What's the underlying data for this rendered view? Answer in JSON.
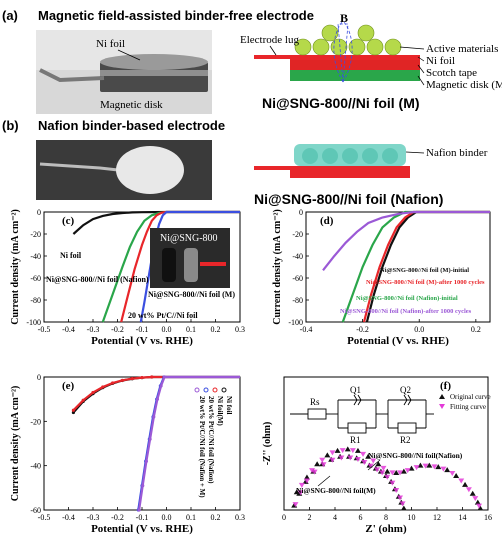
{
  "panels": {
    "a": {
      "letter": "(a)",
      "title": "Magnetic field-assisted binder-free electrode",
      "photo_labels": [
        "Ni foil",
        "Magnetic disk"
      ],
      "schematic_labels": [
        "Electrode lug",
        "B",
        "Active materials",
        "Ni foil",
        "Scotch tape",
        "Magnetic disk (M)"
      ],
      "caption": "Ni@SNG-800//Ni foil (M)"
    },
    "b": {
      "letter": "(b)",
      "title": "Nafion binder-based electrode",
      "schematic_labels": [
        "Nafion binder"
      ],
      "caption": "Ni@SNG-800//Ni foil (Nafion)"
    },
    "c": {
      "letter": "(c)",
      "inset_label": "Ni@SNG-800"
    },
    "d": {
      "letter": "(d)"
    },
    "e": {
      "letter": "(e)"
    },
    "f": {
      "letter": "(f)",
      "circuit_labels": [
        "Rs",
        "Q1",
        "Q2",
        "R1",
        "R2"
      ]
    }
  },
  "colors": {
    "black": "#111111",
    "red": "#e8262a",
    "green": "#2aa64a",
    "blue": "#3b4fe0",
    "violet": "#9b59d6",
    "gray": "#666666",
    "magenta": "#e33ad8",
    "copper": "#c8c8c8",
    "scotch": "#e02525",
    "magnet": "#2aa64a",
    "sphere": "#b5d94a",
    "nafion": "#7fd6c9"
  },
  "chart_data": [
    {
      "id": "c",
      "type": "line",
      "xlabel": "Potential (V vs. RHE)",
      "ylabel": "Current density (mA cm⁻²)",
      "xlim": [
        -0.5,
        0.3
      ],
      "ylim": [
        -100,
        0
      ],
      "xticks": [
        "-0.5",
        "-0.4",
        "-0.3",
        "-0.2",
        "-0.1",
        "0.0",
        "0.1",
        "0.2",
        "0.3"
      ],
      "yticks": [
        "-100",
        "-80",
        "-60",
        "-40",
        "-20",
        "0"
      ],
      "series": [
        {
          "name": "Ni foil",
          "color": "black",
          "x": [
            -0.38,
            -0.34,
            -0.3,
            -0.26,
            -0.22,
            -0.18,
            -0.14,
            -0.1,
            0.0,
            0.3
          ],
          "y": [
            -20,
            -12,
            -6.5,
            -3.5,
            -1.8,
            -0.9,
            -0.4,
            -0.15,
            0,
            0
          ]
        },
        {
          "name": "Ni@SNG-800//Ni foil (Nafion)",
          "color": "green",
          "x": [
            -0.26,
            -0.22,
            -0.18,
            -0.15,
            -0.12,
            -0.09,
            -0.06,
            -0.03,
            0.0,
            0.3
          ],
          "y": [
            -100,
            -75,
            -50,
            -32,
            -18,
            -8,
            -3,
            -0.8,
            0,
            0
          ]
        },
        {
          "name": "Ni@SNG-800//Ni foil (M)",
          "color": "red",
          "x": [
            -0.185,
            -0.16,
            -0.13,
            -0.1,
            -0.08,
            -0.06,
            -0.04,
            -0.02,
            0.0,
            0.3
          ],
          "y": [
            -100,
            -78,
            -52,
            -30,
            -18,
            -8,
            -3,
            -0.6,
            0,
            0
          ]
        },
        {
          "name": "20 wt% Pt/C//Ni foil",
          "color": "blue",
          "x": [
            -0.105,
            -0.09,
            -0.075,
            -0.06,
            -0.045,
            -0.03,
            -0.015,
            0.0,
            0.3
          ],
          "y": [
            -100,
            -82,
            -62,
            -42,
            -24,
            -11,
            -3,
            0,
            0
          ]
        }
      ]
    },
    {
      "id": "d",
      "type": "line",
      "xlabel": "Potential (V vs. RHE)",
      "ylabel": "Current density (mA cm⁻²)",
      "xlim": [
        -0.4,
        0.25
      ],
      "ylim": [
        -100,
        0
      ],
      "xticks": [
        "-0.4",
        "-0.2",
        "0.0",
        "0.2"
      ],
      "yticks": [
        "-100",
        "-80",
        "-60",
        "-40",
        "-20",
        "0"
      ],
      "series": [
        {
          "name": "Ni@SNG-800//Ni foil (M)-initial",
          "color": "black",
          "x": [
            -0.185,
            -0.16,
            -0.13,
            -0.1,
            -0.07,
            -0.04,
            -0.01,
            0.25
          ],
          "y": [
            -100,
            -75,
            -50,
            -30,
            -14,
            -5,
            0,
            0
          ]
        },
        {
          "name": "Ni@SNG-800//Ni foil (M)-after 1000 cycles",
          "color": "red",
          "x": [
            -0.195,
            -0.17,
            -0.14,
            -0.11,
            -0.08,
            -0.05,
            -0.02,
            0.25
          ],
          "y": [
            -100,
            -75,
            -50,
            -30,
            -14,
            -5,
            0,
            0
          ]
        },
        {
          "name": "Ni@SNG-800//Ni foil (Nafion)-initial",
          "color": "green",
          "x": [
            -0.27,
            -0.235,
            -0.2,
            -0.165,
            -0.13,
            -0.09,
            -0.05,
            0.25
          ],
          "y": [
            -100,
            -75,
            -50,
            -30,
            -14,
            -5,
            0,
            0
          ]
        },
        {
          "name": "Ni@SNG-800//Ni foil (Nafion)-after 1000 cycles",
          "color": "violet",
          "x": [
            -0.34,
            -0.3,
            -0.26,
            -0.22,
            -0.18,
            -0.13,
            -0.07,
            -0.02,
            0.25
          ],
          "y": [
            -53,
            -40,
            -28,
            -18,
            -10,
            -5,
            -1.5,
            0,
            0
          ]
        }
      ]
    },
    {
      "id": "e",
      "type": "line",
      "xlabel": "Potential (V vs. RHE)",
      "ylabel": "Current density (mA cm⁻²)",
      "xlim": [
        -0.5,
        0.3
      ],
      "ylim": [
        -60,
        0
      ],
      "xticks": [
        "-0.5",
        "-0.4",
        "-0.3",
        "-0.2",
        "-0.1",
        "0.0",
        "0.1",
        "0.2",
        "0.3"
      ],
      "yticks": [
        "-60",
        "-40",
        "-20",
        "0"
      ],
      "series": [
        {
          "name": "Ni foil",
          "color": "black",
          "x": [
            -0.38,
            -0.34,
            -0.3,
            -0.26,
            -0.22,
            -0.18,
            -0.14,
            -0.1,
            -0.06,
            0.3
          ],
          "y": [
            -16,
            -11,
            -7.5,
            -4.8,
            -2.9,
            -1.6,
            -0.8,
            -0.3,
            0,
            0
          ]
        },
        {
          "name": "Ni foil(M)",
          "color": "red",
          "x": [
            -0.38,
            -0.34,
            -0.3,
            -0.26,
            -0.22,
            -0.18,
            -0.14,
            -0.1,
            -0.06,
            0.3
          ],
          "y": [
            -15,
            -10.5,
            -7,
            -4.5,
            -2.7,
            -1.5,
            -0.7,
            -0.25,
            0,
            0
          ]
        },
        {
          "name": "20 wt% Pt/C//Ni foil (Nafion)",
          "color": "blue",
          "x": [
            -0.115,
            -0.1,
            -0.085,
            -0.07,
            -0.055,
            -0.04,
            -0.025,
            -0.01,
            0.3
          ],
          "y": [
            -60,
            -49,
            -38,
            -28,
            -18,
            -10,
            -4,
            0,
            0
          ]
        },
        {
          "name": "20 wt% Pt/C//Ni foil (Nafion + M)",
          "color": "violet",
          "x": [
            -0.112,
            -0.097,
            -0.082,
            -0.067,
            -0.052,
            -0.037,
            -0.022,
            -0.008,
            0.3
          ],
          "y": [
            -60,
            -49,
            -38,
            -28,
            -18,
            -10,
            -4,
            0,
            0
          ]
        }
      ]
    },
    {
      "id": "f",
      "type": "scatter",
      "xlabel": "Z' (ohm)",
      "ylabel": "-Z'' (ohm)",
      "xlim": [
        0,
        16
      ],
      "ylim": [
        0,
        9
      ],
      "xticks": [
        "0",
        "2",
        "4",
        "6",
        "8",
        "10",
        "12",
        "14",
        "16"
      ],
      "series": [
        {
          "name": "Original curve",
          "color": "black",
          "annotation": "Ni@SNG-800//Ni foil(M)",
          "x": [
            0.8,
            1.2,
            1.7,
            2.3,
            3.0,
            3.7,
            4.4,
            5.1,
            5.7,
            6.2,
            6.7,
            7.2,
            7.6,
            8.0,
            8.4,
            8.7,
            9.0,
            9.2,
            9.4
          ],
          "y": [
            0.3,
            1.1,
            1.9,
            2.6,
            3.1,
            3.4,
            3.6,
            3.6,
            3.5,
            3.3,
            3.0,
            2.8,
            2.6,
            2.3,
            1.9,
            1.4,
            0.9,
            0.5,
            0.1
          ]
        },
        {
          "name": "Original curve",
          "color": "black",
          "annotation": "Ni@SNG-800//Ni foil(Nafion)",
          "x": [
            1.0,
            1.8,
            2.6,
            3.4,
            4.2,
            5.0,
            5.8,
            6.6,
            7.4,
            8.1,
            8.8,
            9.4,
            10.0,
            10.7,
            11.4,
            12.1,
            12.8,
            13.5,
            14.2,
            14.8,
            15.2,
            15.4
          ],
          "y": [
            1.2,
            2.2,
            3.1,
            3.7,
            4.0,
            4.1,
            4.0,
            3.6,
            3.1,
            2.6,
            2.5,
            2.6,
            2.8,
            3.0,
            3.0,
            2.9,
            2.7,
            2.3,
            1.7,
            1.1,
            0.5,
            0.1
          ]
        },
        {
          "name": "Fitting curve",
          "color": "magenta",
          "x": [
            0.9,
            1.3,
            1.8,
            2.4,
            3.1,
            3.8,
            4.5,
            5.2,
            5.8,
            6.3,
            6.8,
            7.3,
            7.7,
            8.1,
            8.5,
            8.8,
            9.1,
            9.3
          ],
          "y": [
            0.4,
            1.2,
            2.0,
            2.6,
            3.1,
            3.4,
            3.55,
            3.55,
            3.45,
            3.25,
            3.0,
            2.75,
            2.55,
            2.25,
            1.85,
            1.35,
            0.85,
            0.45
          ]
        },
        {
          "name": "Fitting curve",
          "color": "magenta",
          "x": [
            1.4,
            2.2,
            3.0,
            3.8,
            4.6,
            5.4,
            6.2,
            7.0,
            7.8,
            8.5,
            9.1,
            9.7,
            10.4,
            11.1,
            11.8,
            12.5,
            13.2,
            13.9,
            14.5,
            15.0,
            15.3
          ],
          "y": [
            1.7,
            2.7,
            3.4,
            3.9,
            4.05,
            4.05,
            3.8,
            3.35,
            2.85,
            2.55,
            2.55,
            2.7,
            2.9,
            3.0,
            2.95,
            2.8,
            2.5,
            2.0,
            1.4,
            0.8,
            0.3
          ]
        }
      ]
    }
  ]
}
